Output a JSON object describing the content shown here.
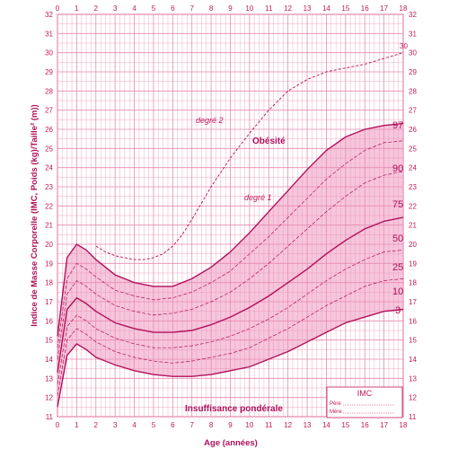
{
  "chart_data": {
    "type": "line",
    "title": "",
    "xlabel": "Age (années)",
    "ylabel": "Indice de Masse Corporelle (IMC, Poids (kg)/Taille² (m))",
    "xlim": [
      0,
      18
    ],
    "ylim": [
      11,
      32
    ],
    "x_ticks": [
      "0",
      "1",
      "2",
      "3",
      "4",
      "5",
      "6",
      "7",
      "8",
      "9",
      "10",
      "11",
      "12",
      "13",
      "14",
      "15",
      "16",
      "17",
      "18"
    ],
    "y_ticks": [
      "11",
      "12",
      "13",
      "14",
      "15",
      "16",
      "17",
      "18",
      "19",
      "20",
      "21",
      "22",
      "23",
      "24",
      "25",
      "26",
      "27",
      "28",
      "29",
      "30",
      "31",
      "32"
    ],
    "grid": true,
    "series": [
      {
        "name": "3",
        "x": [
          0,
          0.5,
          1,
          1.5,
          2,
          3,
          4,
          5,
          6,
          7,
          8,
          9,
          10,
          11,
          12,
          13,
          14,
          15,
          16,
          17,
          18
        ],
        "values": [
          11.5,
          14.2,
          14.8,
          14.5,
          14.1,
          13.7,
          13.4,
          13.2,
          13.1,
          13.1,
          13.2,
          13.4,
          13.6,
          14.0,
          14.4,
          14.9,
          15.4,
          15.9,
          16.2,
          16.5,
          16.6
        ]
      },
      {
        "name": "10",
        "x": [
          0,
          0.5,
          1,
          1.5,
          2,
          3,
          4,
          5,
          6,
          7,
          8,
          9,
          10,
          11,
          12,
          13,
          14,
          15,
          16,
          17,
          18
        ],
        "values": [
          12.1,
          15.0,
          15.6,
          15.3,
          14.9,
          14.4,
          14.1,
          13.9,
          13.8,
          13.9,
          14.1,
          14.3,
          14.6,
          15.1,
          15.6,
          16.2,
          16.8,
          17.3,
          17.8,
          18.1,
          18.2
        ]
      },
      {
        "name": "25",
        "x": [
          0,
          0.5,
          1,
          1.5,
          2,
          3,
          4,
          5,
          6,
          7,
          8,
          9,
          10,
          11,
          12,
          13,
          14,
          15,
          16,
          17,
          18
        ],
        "values": [
          12.7,
          15.7,
          16.3,
          16.0,
          15.6,
          15.1,
          14.8,
          14.6,
          14.6,
          14.7,
          14.9,
          15.2,
          15.6,
          16.1,
          16.7,
          17.4,
          18.1,
          18.7,
          19.2,
          19.6,
          19.7
        ]
      },
      {
        "name": "50",
        "x": [
          0,
          0.5,
          1,
          1.5,
          2,
          3,
          4,
          5,
          6,
          7,
          8,
          9,
          10,
          11,
          12,
          13,
          14,
          15,
          16,
          17,
          18
        ],
        "values": [
          13.3,
          16.6,
          17.2,
          16.9,
          16.5,
          15.9,
          15.6,
          15.4,
          15.4,
          15.5,
          15.8,
          16.2,
          16.7,
          17.3,
          18.0,
          18.7,
          19.5,
          20.2,
          20.8,
          21.2,
          21.4
        ]
      },
      {
        "name": "75",
        "x": [
          0,
          0.5,
          1,
          1.5,
          2,
          3,
          4,
          5,
          6,
          7,
          8,
          9,
          10,
          11,
          12,
          13,
          14,
          15,
          16,
          17,
          18
        ],
        "values": [
          14.0,
          17.4,
          18.1,
          17.8,
          17.4,
          16.8,
          16.5,
          16.3,
          16.4,
          16.6,
          17.0,
          17.5,
          18.2,
          19.0,
          19.9,
          20.8,
          21.7,
          22.5,
          23.2,
          23.6,
          23.8
        ]
      },
      {
        "name": "90",
        "x": [
          0,
          0.5,
          1,
          1.5,
          2,
          3,
          4,
          5,
          6,
          7,
          8,
          9,
          10,
          11,
          12,
          13,
          14,
          15,
          16,
          17,
          18
        ],
        "values": [
          14.6,
          18.2,
          19.0,
          18.7,
          18.3,
          17.6,
          17.3,
          17.1,
          17.2,
          17.5,
          18.0,
          18.6,
          19.5,
          20.4,
          21.4,
          22.4,
          23.4,
          24.2,
          24.9,
          25.3,
          25.4
        ]
      },
      {
        "name": "97",
        "x": [
          0,
          0.5,
          1,
          1.5,
          2,
          3,
          4,
          5,
          6,
          7,
          8,
          9,
          10,
          11,
          12,
          13,
          14,
          15,
          16,
          17,
          18
        ],
        "values": [
          15.2,
          19.3,
          20.0,
          19.7,
          19.2,
          18.4,
          18.0,
          17.8,
          17.8,
          18.2,
          18.8,
          19.6,
          20.6,
          21.7,
          22.8,
          23.9,
          24.9,
          25.6,
          26.0,
          26.2,
          26.3
        ]
      },
      {
        "name": "degré 2",
        "x": [
          2,
          2.5,
          3,
          4,
          4.5,
          5,
          5.5,
          6,
          6.5,
          7,
          8,
          9,
          10,
          11,
          12,
          13,
          14,
          15,
          16,
          17,
          18
        ],
        "values": [
          19.9,
          19.6,
          19.4,
          19.2,
          19.2,
          19.3,
          19.5,
          19.9,
          20.5,
          21.3,
          23.0,
          24.5,
          25.8,
          27.0,
          28.0,
          28.6,
          29.0,
          29.2,
          29.4,
          29.7,
          30.0
        ]
      }
    ]
  },
  "chart_text": {
    "label_97": "97",
    "label_90": "90",
    "label_75": "75",
    "label_50": "50",
    "label_25": "25",
    "label_10": "10",
    "label_3": "3",
    "degre2": "degré 2",
    "degre1": "degré 1",
    "obesite": "Obésité",
    "insuffisance": "Insuffisance pondérale",
    "mark_30": "30"
  },
  "legend": {
    "title": "IMC",
    "row1": "Père",
    "row2": "Mère"
  },
  "colors": {
    "accent": "#b0105a",
    "grid": "#e98ab0",
    "band": "#f6c6dc"
  }
}
